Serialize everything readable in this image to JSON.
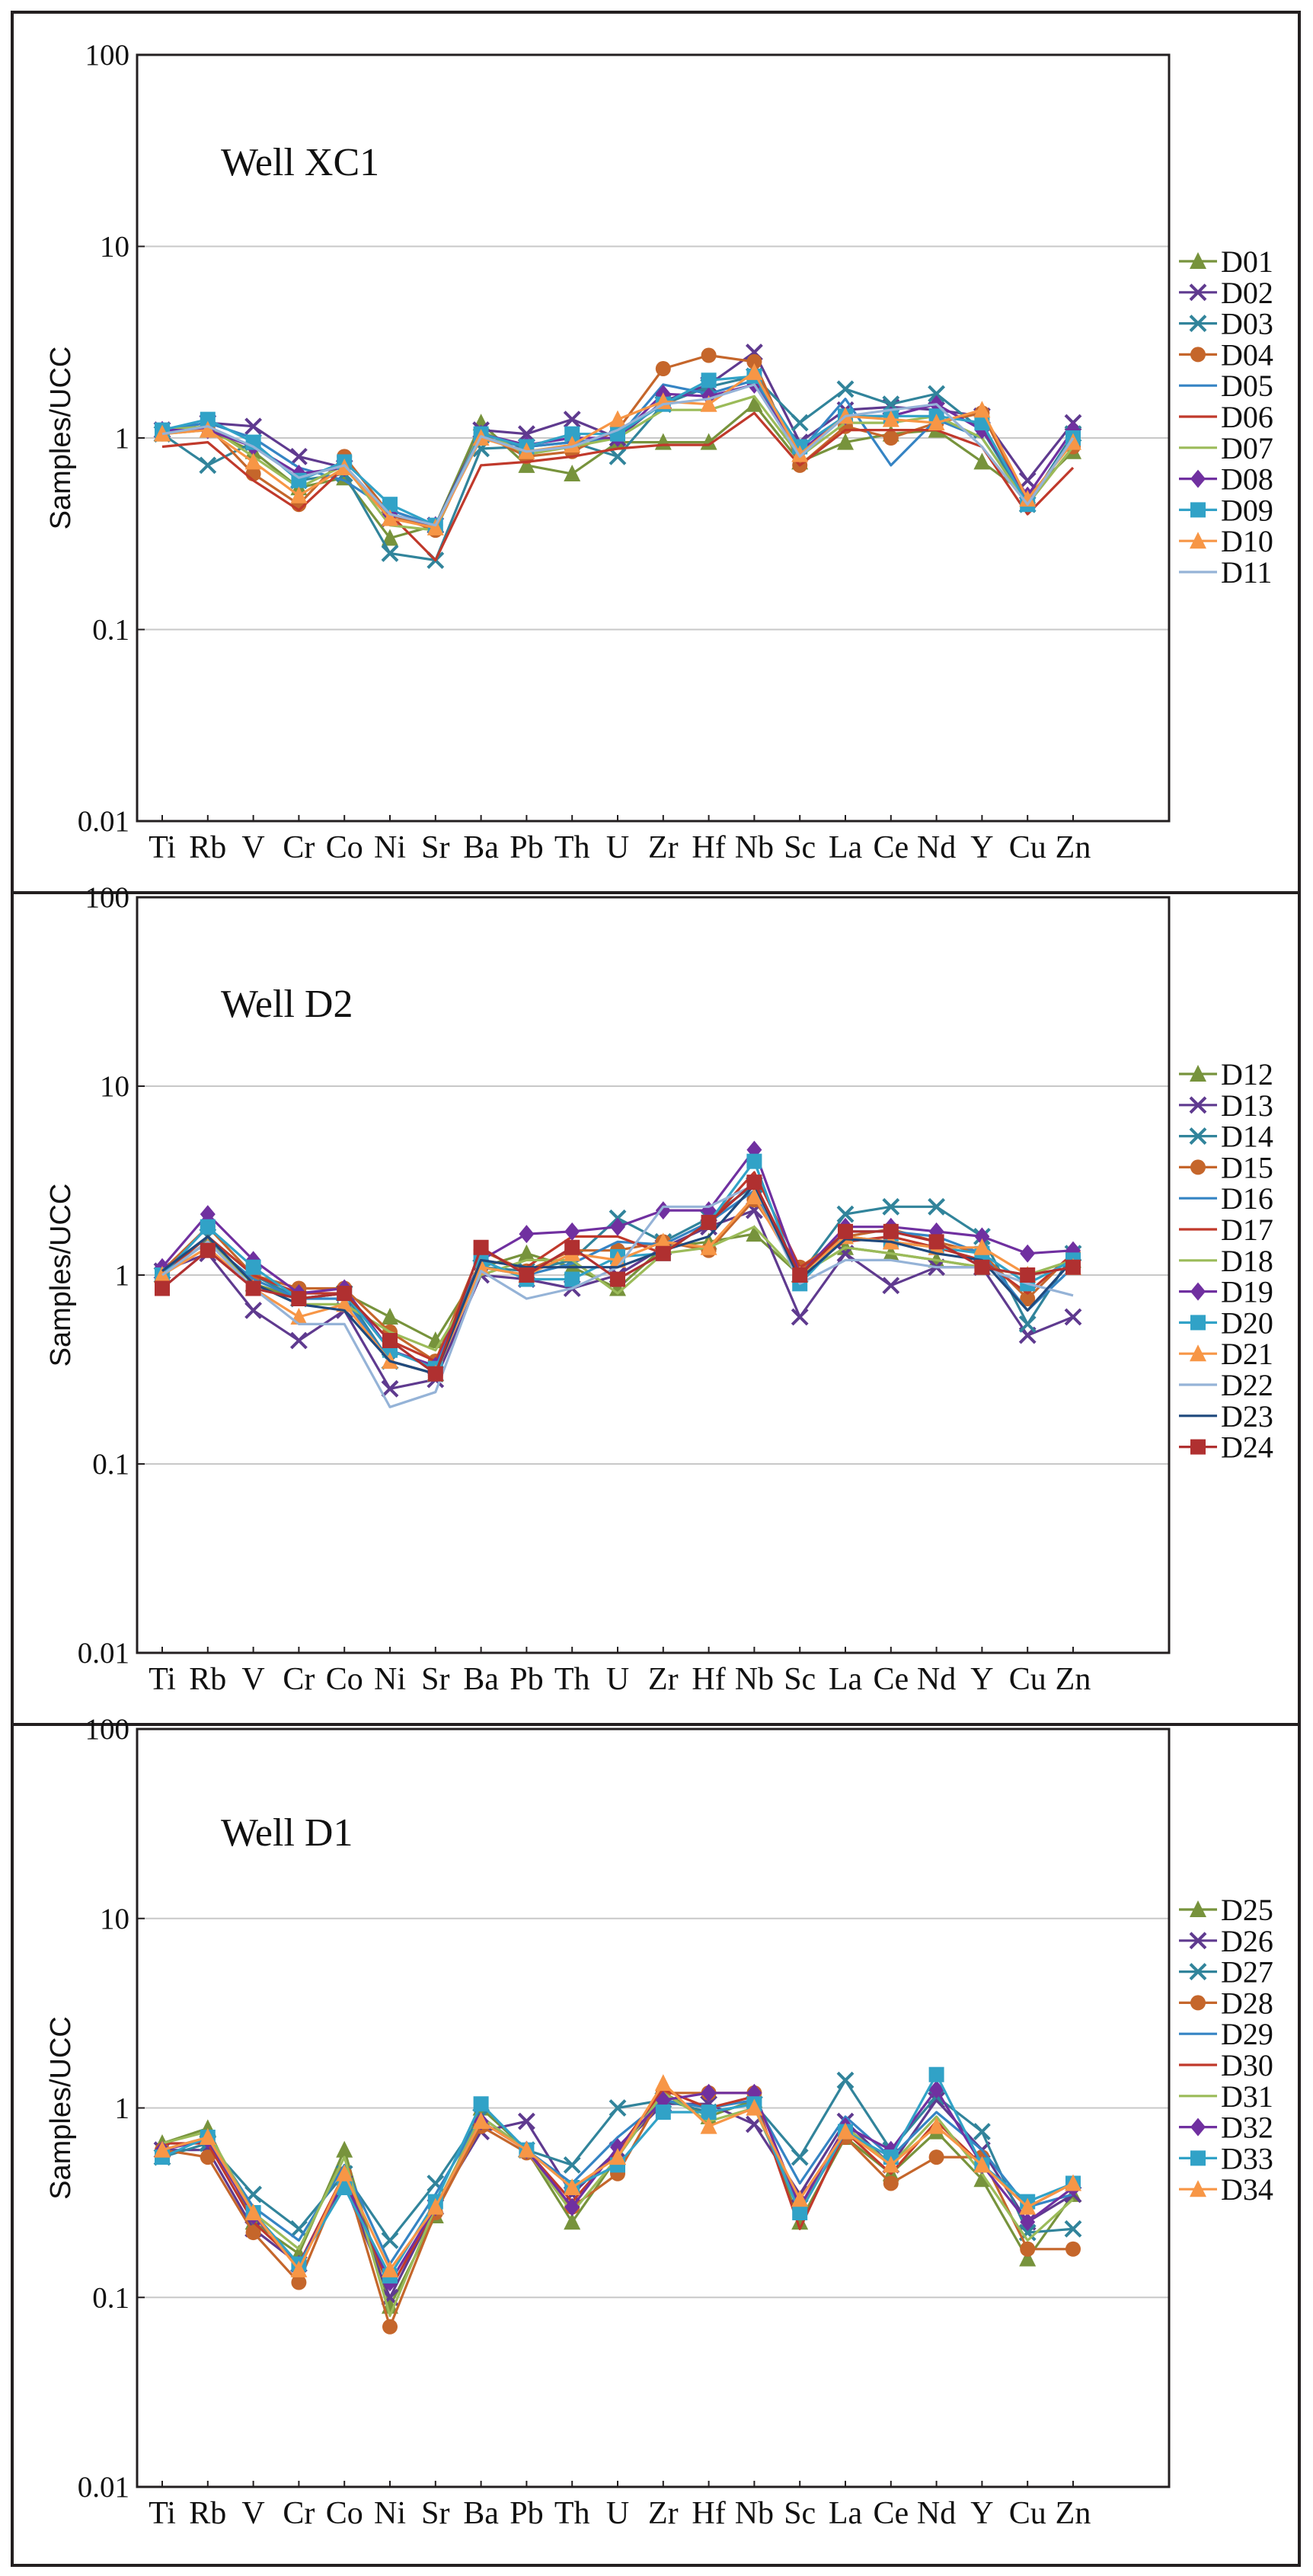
{
  "chart_data": [
    {
      "type": "line",
      "title": "Well XC1",
      "ylabel": "Samples/UCC",
      "yscale": "log",
      "ylim": [
        0.01,
        100
      ],
      "yticks": [
        "0.01",
        "0.1",
        "1",
        "10",
        "100"
      ],
      "categories": [
        "Ti",
        "Rb",
        "V",
        "Cr",
        "Co",
        "Ni",
        "Sr",
        "Ba",
        "Pb",
        "Th",
        "U",
        "Zr",
        "Hf",
        "Nb",
        "Sc",
        "La",
        "Ce",
        "Nd",
        "Y",
        "Cu",
        "Zn"
      ],
      "series": [
        {
          "name": "D01",
          "color": "#77933c",
          "marker": "triangle",
          "values": [
            1.05,
            1.1,
            0.85,
            0.55,
            0.62,
            0.3,
            0.35,
            1.2,
            0.72,
            0.65,
            0.95,
            0.95,
            0.95,
            1.5,
            0.75,
            0.95,
            1.05,
            1.1,
            0.75,
            0.5,
            0.85
          ]
        },
        {
          "name": "D02",
          "color": "#5f3a8f",
          "marker": "cross",
          "values": [
            1.1,
            1.2,
            1.15,
            0.8,
            0.7,
            0.38,
            0.35,
            1.1,
            1.05,
            1.25,
            1.0,
            1.55,
            1.9,
            2.8,
            0.95,
            1.4,
            1.45,
            1.4,
            1.3,
            0.6,
            1.2
          ]
        },
        {
          "name": "D03",
          "color": "#31849b",
          "marker": "cross",
          "values": [
            1.05,
            0.72,
            0.95,
            0.6,
            0.65,
            0.25,
            0.23,
            0.88,
            0.9,
            0.95,
            0.8,
            1.5,
            1.85,
            2.1,
            1.2,
            1.8,
            1.5,
            1.7,
            1.1,
            0.45,
            1.05
          ]
        },
        {
          "name": "D04",
          "color": "#c5662b",
          "marker": "circle",
          "values": [
            1.05,
            1.15,
            0.65,
            0.45,
            0.8,
            0.4,
            0.33,
            1.05,
            0.8,
            0.85,
            1.1,
            2.3,
            2.7,
            2.5,
            0.72,
            1.15,
            1.0,
            1.2,
            1.35,
            0.45,
            0.9
          ]
        },
        {
          "name": "D05",
          "color": "#3584c4",
          "marker": "none",
          "values": [
            1.1,
            1.2,
            1.0,
            0.7,
            0.6,
            0.42,
            0.35,
            1.0,
            0.9,
            0.95,
            1.0,
            1.9,
            1.7,
            2.0,
            0.85,
            1.6,
            0.72,
            1.25,
            1.0,
            0.45,
            1.0
          ]
        },
        {
          "name": "D06",
          "color": "#c0392b",
          "marker": "none",
          "values": [
            0.9,
            0.95,
            0.6,
            0.42,
            0.7,
            0.4,
            0.23,
            0.72,
            0.75,
            0.8,
            0.88,
            0.92,
            0.92,
            1.35,
            0.72,
            1.1,
            1.1,
            1.1,
            0.9,
            0.4,
            0.7
          ]
        },
        {
          "name": "D07",
          "color": "#9bbb59",
          "marker": "none",
          "values": [
            1.1,
            1.15,
            0.8,
            0.55,
            0.72,
            0.35,
            0.33,
            1.1,
            0.82,
            0.9,
            1.0,
            1.4,
            1.4,
            1.65,
            0.8,
            1.2,
            1.2,
            1.3,
            1.0,
            0.45,
            0.9
          ]
        },
        {
          "name": "D08",
          "color": "#7030a0",
          "marker": "diamond",
          "values": [
            1.1,
            1.1,
            0.9,
            0.65,
            0.7,
            0.4,
            0.35,
            1.05,
            0.92,
            1.0,
            1.0,
            1.7,
            1.65,
            1.9,
            0.85,
            1.3,
            1.3,
            1.5,
            1.1,
            0.5,
            1.1
          ]
        },
        {
          "name": "D09",
          "color": "#31a2c7",
          "marker": "square",
          "values": [
            1.1,
            1.25,
            0.95,
            0.6,
            0.75,
            0.45,
            0.35,
            1.05,
            0.9,
            1.05,
            1.05,
            1.5,
            2.0,
            2.1,
            0.9,
            1.3,
            1.3,
            1.3,
            1.2,
            0.45,
            1.0
          ]
        },
        {
          "name": "D10",
          "color": "#f79646",
          "marker": "triangle",
          "values": [
            1.05,
            1.1,
            0.75,
            0.5,
            0.7,
            0.38,
            0.34,
            1.0,
            0.85,
            0.92,
            1.25,
            1.55,
            1.5,
            2.2,
            0.82,
            1.3,
            1.25,
            1.2,
            1.4,
            0.48,
            0.95
          ]
        },
        {
          "name": "D11",
          "color": "#95b3d7",
          "marker": "none",
          "values": [
            1.05,
            1.15,
            0.9,
            0.62,
            0.72,
            0.4,
            0.35,
            1.02,
            0.85,
            0.9,
            1.1,
            1.5,
            1.6,
            1.9,
            0.8,
            1.3,
            1.4,
            1.5,
            0.9,
            0.45,
            1.0
          ]
        }
      ]
    },
    {
      "type": "line",
      "title": "Well D2",
      "ylabel": "Samples/UCC",
      "yscale": "log",
      "ylim": [
        0.01,
        100
      ],
      "yticks": [
        "0.01",
        "0.1",
        "1",
        "10",
        "100"
      ],
      "categories": [
        "Ti",
        "Rb",
        "V",
        "Cr",
        "Co",
        "Ni",
        "Sr",
        "Ba",
        "Pb",
        "Th",
        "U",
        "Zr",
        "Hf",
        "Nb",
        "Sc",
        "La",
        "Ce",
        "Nd",
        "Y",
        "Cu",
        "Zn"
      ],
      "series": [
        {
          "name": "D12",
          "color": "#77933c",
          "marker": "triangle",
          "values": [
            1.0,
            1.5,
            0.9,
            0.75,
            0.8,
            0.6,
            0.45,
            1.1,
            1.3,
            1.1,
            0.85,
            1.4,
            1.5,
            1.65,
            1.0,
            1.4,
            1.3,
            1.2,
            1.1,
            1.0,
            1.2
          ]
        },
        {
          "name": "D13",
          "color": "#5f3a8f",
          "marker": "cross",
          "values": [
            1.05,
            1.3,
            0.65,
            0.45,
            0.65,
            0.25,
            0.28,
            1.0,
            0.95,
            0.85,
            1.0,
            1.4,
            1.8,
            2.2,
            0.6,
            1.3,
            0.88,
            1.1,
            1.1,
            0.48,
            0.6
          ]
        },
        {
          "name": "D14",
          "color": "#31849b",
          "marker": "cross",
          "values": [
            1.0,
            1.6,
            1.0,
            0.75,
            0.8,
            0.35,
            0.3,
            1.1,
            1.05,
            1.2,
            2.0,
            1.5,
            2.0,
            3.0,
            1.0,
            2.1,
            2.3,
            2.3,
            1.6,
            0.55,
            1.3
          ]
        },
        {
          "name": "D15",
          "color": "#c5662b",
          "marker": "circle",
          "values": [
            1.05,
            1.8,
            1.0,
            0.85,
            0.85,
            0.5,
            0.35,
            1.35,
            1.05,
            1.35,
            1.35,
            1.5,
            1.35,
            2.5,
            1.1,
            1.6,
            1.75,
            1.5,
            1.3,
            0.75,
            1.3
          ]
        },
        {
          "name": "D16",
          "color": "#3584c4",
          "marker": "none",
          "values": [
            1.0,
            1.5,
            0.95,
            0.75,
            0.75,
            0.35,
            0.3,
            1.1,
            1.0,
            1.15,
            1.5,
            1.45,
            1.9,
            2.8,
            1.0,
            1.7,
            1.7,
            1.6,
            1.3,
            0.65,
            1.1
          ]
        },
        {
          "name": "D17",
          "color": "#c0392b",
          "marker": "none",
          "values": [
            1.0,
            1.6,
            1.0,
            0.8,
            0.8,
            0.45,
            0.35,
            1.2,
            1.1,
            1.6,
            1.6,
            1.3,
            1.9,
            3.5,
            1.1,
            1.5,
            1.6,
            1.4,
            1.2,
            0.8,
            1.3
          ]
        },
        {
          "name": "D18",
          "color": "#9bbb59",
          "marker": "none",
          "values": [
            1.0,
            1.5,
            0.9,
            0.7,
            0.7,
            0.5,
            0.4,
            1.0,
            1.2,
            1.2,
            0.8,
            1.3,
            1.4,
            1.8,
            1.0,
            1.4,
            1.3,
            1.2,
            1.1,
            1.0,
            1.2
          ]
        },
        {
          "name": "D19",
          "color": "#7030a0",
          "marker": "diamond",
          "values": [
            1.1,
            2.1,
            1.2,
            0.8,
            0.85,
            0.4,
            0.33,
            1.2,
            1.65,
            1.7,
            1.8,
            2.2,
            2.2,
            4.6,
            1.0,
            1.8,
            1.8,
            1.7,
            1.6,
            1.3,
            1.35
          ]
        },
        {
          "name": "D20",
          "color": "#31a2c7",
          "marker": "square",
          "values": [
            1.0,
            1.8,
            1.1,
            0.75,
            0.8,
            0.4,
            0.32,
            1.2,
            0.95,
            0.95,
            1.25,
            1.3,
            1.9,
            4.0,
            0.9,
            1.6,
            1.5,
            1.4,
            1.3,
            0.9,
            1.2
          ]
        },
        {
          "name": "D21",
          "color": "#f79646",
          "marker": "triangle",
          "values": [
            1.0,
            1.4,
            0.85,
            0.6,
            0.7,
            0.35,
            0.3,
            1.1,
            1.0,
            1.3,
            1.2,
            1.5,
            1.4,
            2.6,
            1.0,
            1.6,
            1.5,
            1.4,
            1.4,
            1.0,
            1.1
          ]
        },
        {
          "name": "D22",
          "color": "#95b3d7",
          "marker": "none",
          "values": [
            1.0,
            1.5,
            0.85,
            0.55,
            0.55,
            0.2,
            0.24,
            1.05,
            0.75,
            0.85,
            1.1,
            2.3,
            2.3,
            3.0,
            0.9,
            1.2,
            1.2,
            1.1,
            1.1,
            0.9,
            0.78
          ]
        },
        {
          "name": "D23",
          "color": "#1f497d",
          "marker": "none",
          "values": [
            1.05,
            1.6,
            0.9,
            0.7,
            0.65,
            0.35,
            0.3,
            1.2,
            1.1,
            1.1,
            1.1,
            1.35,
            1.6,
            3.0,
            0.95,
            1.55,
            1.5,
            1.3,
            1.2,
            0.65,
            1.2
          ]
        },
        {
          "name": "D24",
          "color": "#b03030",
          "marker": "square",
          "values": [
            0.85,
            1.35,
            0.85,
            0.75,
            0.8,
            0.45,
            0.3,
            1.4,
            1.0,
            1.4,
            0.95,
            1.3,
            1.9,
            3.1,
            1.0,
            1.7,
            1.7,
            1.5,
            1.1,
            1.0,
            1.1
          ]
        }
      ]
    },
    {
      "type": "line",
      "title": "Well D1",
      "ylabel": "Samples/UCC",
      "yscale": "log",
      "ylim": [
        0.01,
        100
      ],
      "yticks": [
        "0.01",
        "0.1",
        "1",
        "10",
        "100"
      ],
      "categories": [
        "Ti",
        "Rb",
        "V",
        "Cr",
        "Co",
        "Ni",
        "Sr",
        "Ba",
        "Pb",
        "Th",
        "U",
        "Zr",
        "Hf",
        "Nb",
        "Sc",
        "La",
        "Ce",
        "Nd",
        "Y",
        "Cu",
        "Zn"
      ],
      "series": [
        {
          "name": "D25",
          "color": "#77933c",
          "marker": "triangle",
          "values": [
            0.65,
            0.78,
            0.25,
            0.17,
            0.6,
            0.09,
            0.27,
            1.0,
            0.6,
            0.25,
            0.55,
            1.2,
            0.9,
            1.1,
            0.25,
            0.7,
            0.45,
            0.75,
            0.42,
            0.16,
            0.35
          ]
        },
        {
          "name": "D26",
          "color": "#5f3a8f",
          "marker": "cross",
          "values": [
            0.6,
            0.6,
            0.23,
            0.15,
            0.4,
            0.1,
            0.3,
            0.75,
            0.85,
            0.35,
            0.6,
            1.05,
            1.05,
            0.82,
            0.35,
            0.85,
            0.5,
            1.1,
            0.6,
            0.25,
            0.35
          ]
        },
        {
          "name": "D27",
          "color": "#31849b",
          "marker": "cross",
          "values": [
            0.55,
            0.65,
            0.35,
            0.23,
            0.45,
            0.2,
            0.4,
            0.9,
            0.6,
            0.5,
            1.0,
            1.1,
            0.95,
            1.05,
            0.55,
            1.4,
            0.6,
            1.15,
            0.75,
            0.22,
            0.23
          ]
        },
        {
          "name": "D28",
          "color": "#c5662b",
          "marker": "circle",
          "values": [
            0.6,
            0.55,
            0.22,
            0.12,
            0.45,
            0.07,
            0.28,
            0.8,
            0.58,
            0.3,
            0.45,
            1.2,
            1.2,
            1.2,
            0.3,
            0.7,
            0.4,
            0.55,
            0.55,
            0.18,
            0.18
          ]
        },
        {
          "name": "D29",
          "color": "#3584c4",
          "marker": "none",
          "values": [
            0.6,
            0.7,
            0.3,
            0.2,
            0.5,
            0.15,
            0.35,
            0.9,
            0.6,
            0.4,
            0.7,
            1.1,
            1.0,
            1.1,
            0.4,
            0.9,
            0.55,
            0.95,
            0.6,
            0.3,
            0.35
          ]
        },
        {
          "name": "D30",
          "color": "#c0392b",
          "marker": "none",
          "values": [
            0.65,
            0.65,
            0.25,
            0.15,
            0.45,
            0.11,
            0.3,
            0.85,
            0.6,
            0.32,
            0.6,
            1.25,
            1.0,
            1.15,
            0.23,
            0.75,
            0.45,
            0.85,
            0.5,
            0.3,
            0.4
          ]
        },
        {
          "name": "D31",
          "color": "#9bbb59",
          "marker": "none",
          "values": [
            0.65,
            0.75,
            0.28,
            0.18,
            0.55,
            0.08,
            0.3,
            0.9,
            0.6,
            0.28,
            0.55,
            1.2,
            0.85,
            1.0,
            0.3,
            0.8,
            0.5,
            0.9,
            0.45,
            0.2,
            0.33
          ]
        },
        {
          "name": "D32",
          "color": "#7030a0",
          "marker": "diamond",
          "values": [
            0.6,
            0.68,
            0.27,
            0.15,
            0.42,
            0.12,
            0.3,
            0.85,
            0.6,
            0.3,
            0.62,
            1.1,
            1.2,
            1.2,
            0.3,
            0.8,
            0.6,
            1.25,
            0.5,
            0.25,
            0.38
          ]
        },
        {
          "name": "D33",
          "color": "#31a2c7",
          "marker": "square",
          "values": [
            0.55,
            0.7,
            0.28,
            0.15,
            0.38,
            0.13,
            0.32,
            1.05,
            0.6,
            0.38,
            0.5,
            0.95,
            0.95,
            1.05,
            0.28,
            0.75,
            0.55,
            1.5,
            0.5,
            0.32,
            0.4
          ]
        },
        {
          "name": "D34",
          "color": "#f79646",
          "marker": "triangle",
          "values": [
            0.6,
            0.7,
            0.28,
            0.14,
            0.45,
            0.14,
            0.3,
            0.85,
            0.6,
            0.38,
            0.55,
            1.35,
            0.8,
            1.0,
            0.33,
            0.75,
            0.5,
            0.8,
            0.5,
            0.3,
            0.4
          ]
        }
      ]
    }
  ]
}
